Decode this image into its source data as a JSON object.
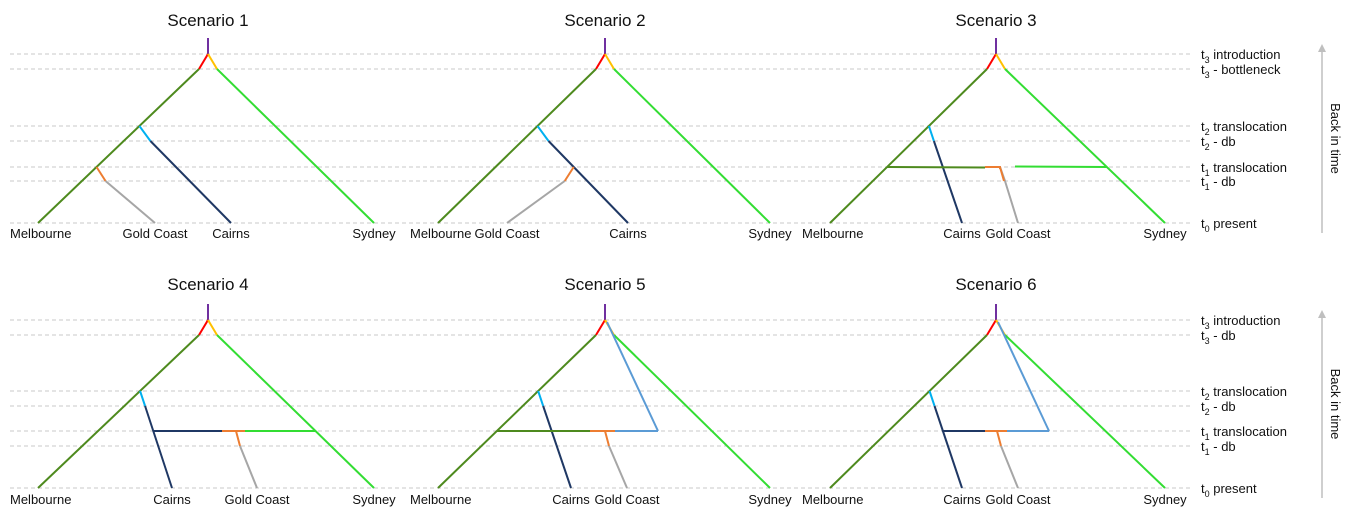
{
  "scenarios": [
    {
      "title": "Scenario 1",
      "leaves": [
        "Melbourne",
        "Gold Coast",
        "Cairns",
        "Sydney"
      ],
      "branches": [
        {
          "from": "root",
          "to": "introduction",
          "color": "#7030a0"
        },
        {
          "from": "introduction",
          "to": "Melbourne",
          "color": "#4e8a1e",
          "label": "Melbourne lineage"
        },
        {
          "from": "introduction",
          "to": "Sydney",
          "color": "#33dd33"
        },
        {
          "from": "Melbourne lineage",
          "to": "Cairns",
          "color": "#1f3864",
          "at": "t2 translocation"
        },
        {
          "from": "Melbourne lineage",
          "to": "Gold Coast",
          "color": "#a6a6a6",
          "at": "t1 translocation"
        }
      ]
    },
    {
      "title": "Scenario 2",
      "leaves": [
        "Melbourne",
        "Gold Coast",
        "Cairns",
        "Sydney"
      ],
      "branches": [
        {
          "from": "root",
          "to": "introduction",
          "color": "#7030a0"
        },
        {
          "from": "introduction",
          "to": "Melbourne",
          "color": "#4e8a1e"
        },
        {
          "from": "introduction",
          "to": "Sydney",
          "color": "#33dd33"
        },
        {
          "from": "Melbourne lineage",
          "to": "Cairns",
          "color": "#1f3864",
          "at": "t2 translocation"
        },
        {
          "from": "Cairns lineage",
          "to": "Gold Coast",
          "color": "#a6a6a6",
          "at": "t1 translocation"
        }
      ]
    },
    {
      "title": "Scenario 3",
      "leaves": [
        "Melbourne",
        "Cairns",
        "Gold Coast",
        "Sydney"
      ],
      "branches": [
        {
          "from": "root",
          "to": "introduction",
          "color": "#7030a0"
        },
        {
          "from": "introduction",
          "to": "Melbourne",
          "color": "#4e8a1e"
        },
        {
          "from": "introduction",
          "to": "Sydney",
          "color": "#33dd33"
        },
        {
          "from": "Melbourne lineage",
          "to": "Cairns",
          "color": "#1f3864",
          "at": "t2 translocation"
        },
        {
          "from": "Melbourne + Sydney admixture",
          "to": "Gold Coast",
          "color": "#a6a6a6",
          "at": "t1 translocation"
        }
      ]
    },
    {
      "title": "Scenario 4",
      "leaves": [
        "Melbourne",
        "Cairns",
        "Gold Coast",
        "Sydney"
      ],
      "branches": [
        {
          "from": "root",
          "to": "introduction",
          "color": "#7030a0"
        },
        {
          "from": "introduction",
          "to": "Melbourne",
          "color": "#4e8a1e"
        },
        {
          "from": "introduction",
          "to": "Sydney",
          "color": "#33dd33"
        },
        {
          "from": "Melbourne lineage",
          "to": "Cairns",
          "color": "#1f3864",
          "at": "t2 translocation"
        },
        {
          "from": "Cairns + Sydney admixture",
          "to": "Gold Coast",
          "color": "#a6a6a6",
          "at": "t1 translocation"
        }
      ]
    },
    {
      "title": "Scenario 5",
      "leaves": [
        "Melbourne",
        "Cairns",
        "Gold Coast",
        "Sydney"
      ],
      "branches": [
        {
          "from": "root",
          "to": "introduction",
          "color": "#7030a0"
        },
        {
          "from": "introduction",
          "to": "Melbourne",
          "color": "#4e8a1e"
        },
        {
          "from": "introduction",
          "to": "Sydney",
          "color": "#33dd33"
        },
        {
          "from": "introduction",
          "to": "unsampled source",
          "color": "#5b9bd5"
        },
        {
          "from": "Melbourne lineage",
          "to": "Cairns",
          "color": "#1f3864",
          "at": "t2 translocation"
        },
        {
          "from": "Melbourne + unsampled admixture",
          "to": "Gold Coast",
          "color": "#a6a6a6",
          "at": "t1 translocation"
        }
      ]
    },
    {
      "title": "Scenario 6",
      "leaves": [
        "Melbourne",
        "Cairns",
        "Gold Coast",
        "Sydney"
      ],
      "branches": [
        {
          "from": "root",
          "to": "introduction",
          "color": "#7030a0"
        },
        {
          "from": "introduction",
          "to": "Melbourne",
          "color": "#4e8a1e"
        },
        {
          "from": "introduction",
          "to": "Sydney",
          "color": "#33dd33"
        },
        {
          "from": "introduction",
          "to": "unsampled source",
          "color": "#5b9bd5"
        },
        {
          "from": "Melbourne lineage",
          "to": "Cairns",
          "color": "#1f3864",
          "at": "t2 translocation"
        },
        {
          "from": "Cairns + unsampled admixture",
          "to": "Gold Coast",
          "color": "#a6a6a6",
          "at": "t1 translocation"
        }
      ]
    }
  ],
  "time_labels": {
    "top": [
      {
        "main": "t",
        "sub": "3",
        "rest": " introduction"
      },
      {
        "main": "t",
        "sub": "3",
        "rest": " - bottleneck"
      },
      {
        "main": "t",
        "sub": "2",
        "rest": " translocation"
      },
      {
        "main": "t",
        "sub": "2",
        "rest": " - db"
      },
      {
        "main": "t",
        "sub": "1",
        "rest": " translocation"
      },
      {
        "main": "t",
        "sub": "1",
        "rest": " - db"
      },
      {
        "main": "t",
        "sub": "0",
        "rest": " present"
      }
    ],
    "bottom": [
      {
        "main": "t",
        "sub": "3",
        "rest": " introduction"
      },
      {
        "main": "t",
        "sub": "3",
        "rest": " - db"
      },
      {
        "main": "t",
        "sub": "2",
        "rest": " translocation"
      },
      {
        "main": "t",
        "sub": "2",
        "rest": " - db"
      },
      {
        "main": "t",
        "sub": "1",
        "rest": " translocation"
      },
      {
        "main": "t",
        "sub": "1",
        "rest": " - db"
      },
      {
        "main": "t",
        "sub": "0",
        "rest": " present"
      }
    ]
  },
  "axis_label": "Back in time",
  "colors": {
    "root": "#7030a0",
    "bottleneck_left": "#ff0000",
    "bottleneck_right": "#ffc000",
    "melbourne": "#4e8a1e",
    "sydney": "#33dd33",
    "cairns": "#1f3864",
    "cairns_db": "#00b0f0",
    "gold_coast": "#a6a6a6",
    "gold_coast_db": "#ed7d31",
    "unsampled": "#5b9bd5",
    "gridline": "#c8c8c8",
    "arrow": "#bfbfbf"
  }
}
